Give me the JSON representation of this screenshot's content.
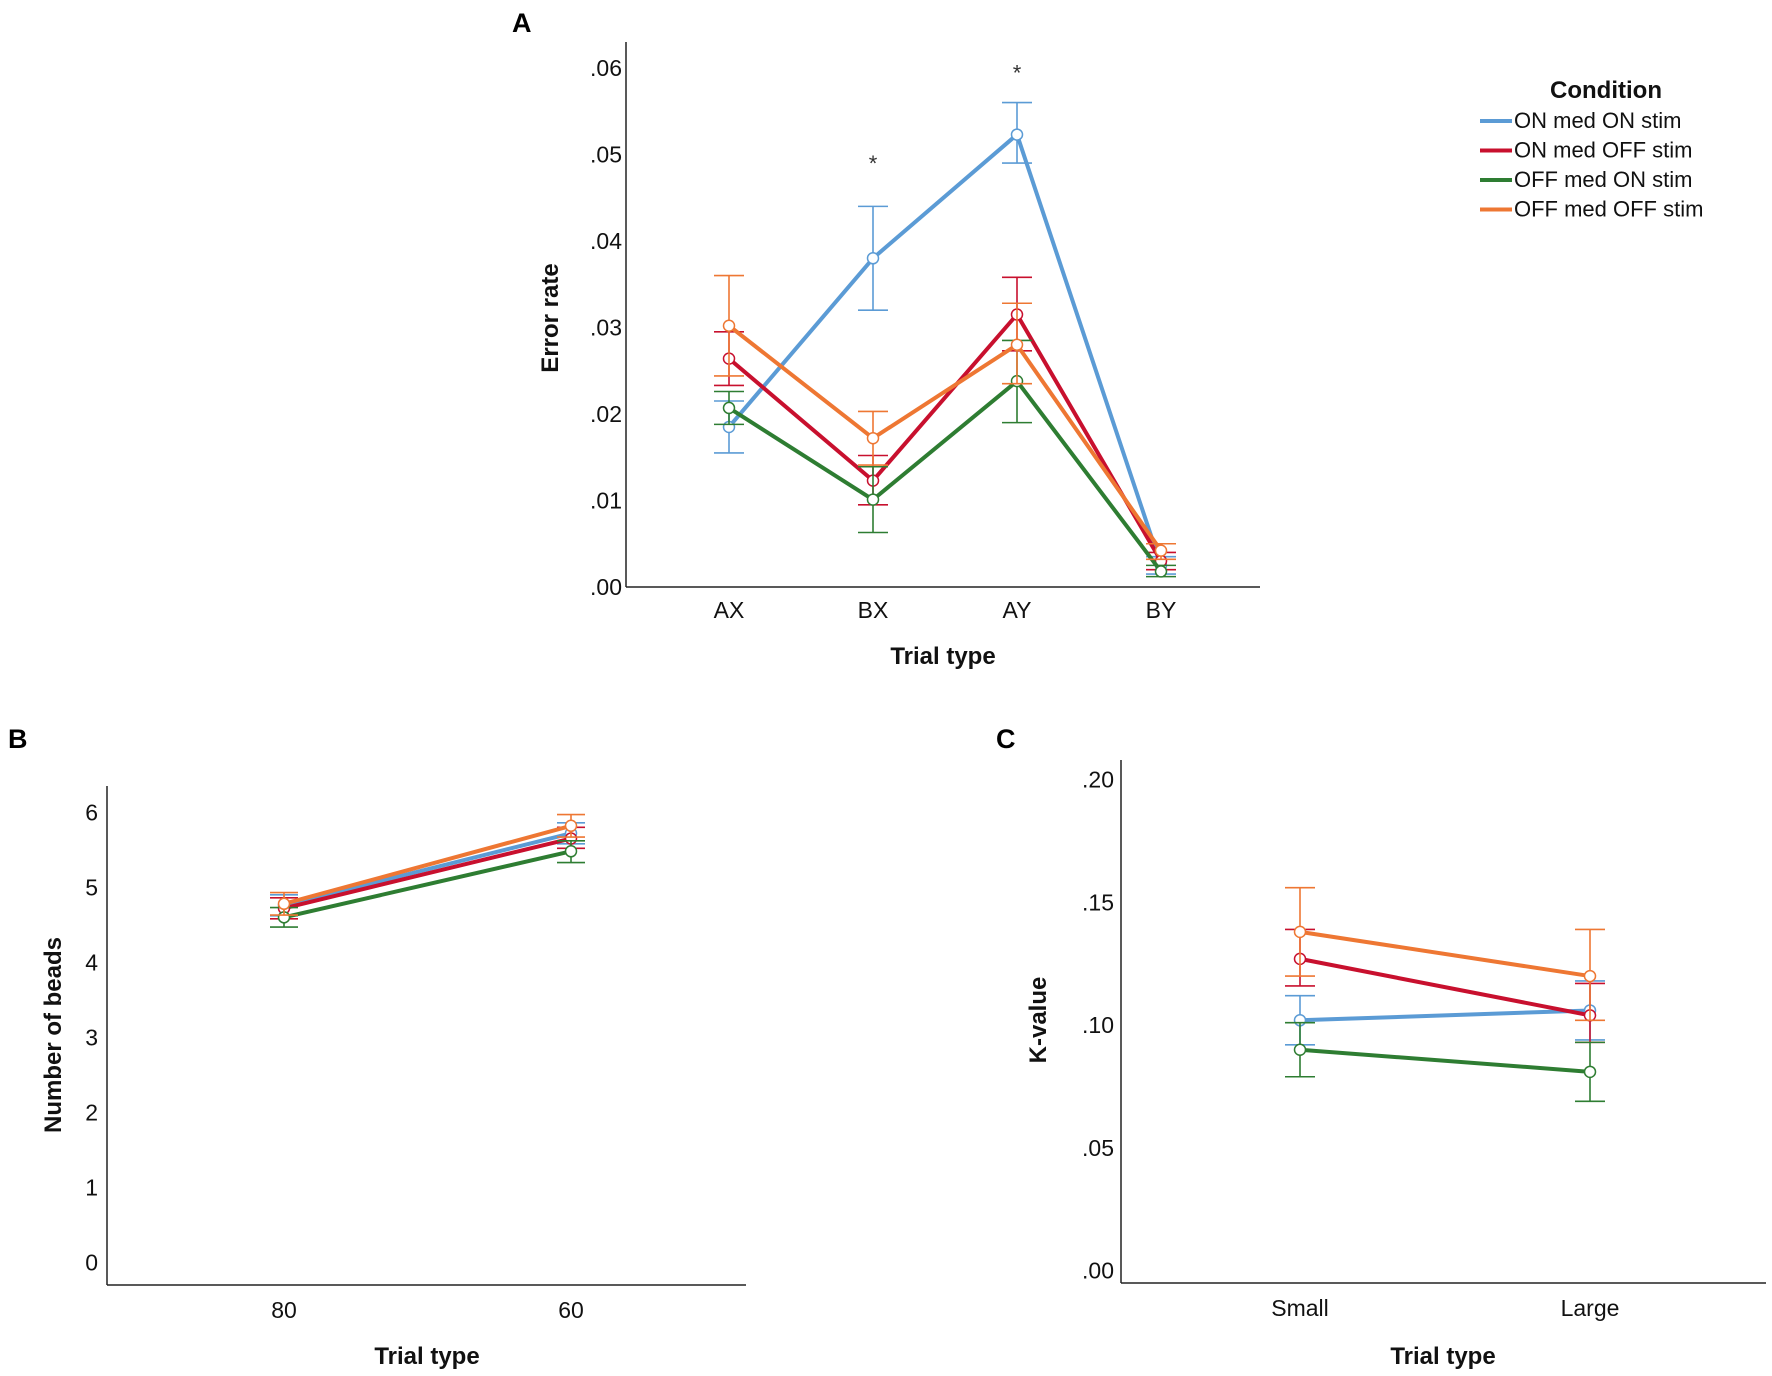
{
  "chart_data": [
    {
      "panel": "A",
      "type": "line",
      "xlabel": "Trial type",
      "ylabel": "Error rate",
      "categories": [
        "AX",
        "BX",
        "AY",
        "BY"
      ],
      "ylim": [
        0,
        0.063
      ],
      "yticks": [
        0,
        0.01,
        0.02,
        0.03,
        0.04,
        0.05,
        0.06
      ],
      "ytick_labels": [
        ".00",
        ".01",
        ".02",
        ".03",
        ".04",
        ".05",
        ".06"
      ],
      "annotations": [
        {
          "category": "BX",
          "text": "*",
          "y": 0.049
        },
        {
          "category": "AY",
          "text": "*",
          "y": 0.0595
        }
      ],
      "series": [
        {
          "name": "ON med ON stim",
          "color": "#5b9bd5",
          "values": [
            0.0185,
            0.038,
            0.0523,
            0.0025
          ],
          "err_low": [
            0.0155,
            0.032,
            0.049,
            0.0015
          ],
          "err_high": [
            0.0215,
            0.044,
            0.056,
            0.0035
          ]
        },
        {
          "name": "ON med OFF stim",
          "color": "#c8102e",
          "values": [
            0.0264,
            0.0123,
            0.0315,
            0.003
          ],
          "err_low": [
            0.0233,
            0.0095,
            0.0273,
            0.002
          ],
          "err_high": [
            0.0295,
            0.0152,
            0.0358,
            0.004
          ]
        },
        {
          "name": "OFF med ON stim",
          "color": "#2e7d32",
          "values": [
            0.0207,
            0.0101,
            0.0238,
            0.0018
          ],
          "err_low": [
            0.0188,
            0.0063,
            0.019,
            0.0012
          ],
          "err_high": [
            0.0226,
            0.0139,
            0.0285,
            0.0025
          ]
        },
        {
          "name": "OFF med OFF stim",
          "color": "#ee7733",
          "values": [
            0.0302,
            0.0172,
            0.028,
            0.0042
          ],
          "err_low": [
            0.0244,
            0.0141,
            0.0235,
            0.0032
          ],
          "err_high": [
            0.036,
            0.0203,
            0.0328,
            0.005
          ]
        }
      ]
    },
    {
      "panel": "B",
      "type": "line",
      "xlabel": "Trial type",
      "ylabel": "Number of beads",
      "categories": [
        "80",
        "60"
      ],
      "ylim": [
        -0.3,
        6.35
      ],
      "yticks": [
        0,
        1,
        2,
        3,
        4,
        5,
        6
      ],
      "ytick_labels": [
        "0",
        "1",
        "2",
        "3",
        "4",
        "5",
        "6"
      ],
      "series": [
        {
          "name": "ON med ON stim",
          "color": "#5b9bd5",
          "values": [
            4.76,
            5.72
          ],
          "err_low": [
            4.62,
            5.58
          ],
          "err_high": [
            4.9,
            5.86
          ]
        },
        {
          "name": "ON med OFF stim",
          "color": "#c8102e",
          "values": [
            4.72,
            5.65
          ],
          "err_low": [
            4.58,
            5.52
          ],
          "err_high": [
            4.86,
            5.8
          ]
        },
        {
          "name": "OFF med ON stim",
          "color": "#2e7d32",
          "values": [
            4.6,
            5.48
          ],
          "err_low": [
            4.47,
            5.33
          ],
          "err_high": [
            4.73,
            5.62
          ]
        },
        {
          "name": "OFF med OFF stim",
          "color": "#ee7733",
          "values": [
            4.78,
            5.82
          ],
          "err_low": [
            4.63,
            5.67
          ],
          "err_high": [
            4.93,
            5.97
          ]
        }
      ]
    },
    {
      "panel": "C",
      "type": "line",
      "xlabel": "Trial type",
      "ylabel": "K-value",
      "categories": [
        "Small",
        "Large"
      ],
      "ylim": [
        -0.005,
        0.208
      ],
      "yticks": [
        0,
        0.05,
        0.1,
        0.15,
        0.2
      ],
      "ytick_labels": [
        ".00",
        ".05",
        ".10",
        ".15",
        ".20"
      ],
      "series": [
        {
          "name": "ON med ON stim",
          "color": "#5b9bd5",
          "values": [
            0.102,
            0.106
          ],
          "err_low": [
            0.092,
            0.094
          ],
          "err_high": [
            0.112,
            0.118
          ]
        },
        {
          "name": "ON med OFF stim",
          "color": "#c8102e",
          "values": [
            0.127,
            0.104
          ],
          "err_low": [
            0.116,
            0.093
          ],
          "err_high": [
            0.139,
            0.117
          ]
        },
        {
          "name": "OFF med ON stim",
          "color": "#2e7d32",
          "values": [
            0.09,
            0.081
          ],
          "err_low": [
            0.079,
            0.069
          ],
          "err_high": [
            0.101,
            0.093
          ]
        },
        {
          "name": "OFF med OFF stim",
          "color": "#ee7733",
          "values": [
            0.138,
            0.12
          ],
          "err_low": [
            0.12,
            0.102
          ],
          "err_high": [
            0.156,
            0.139
          ]
        }
      ]
    }
  ],
  "legend": {
    "title": "Condition",
    "items": [
      {
        "label": "ON med ON stim",
        "color": "#5b9bd5"
      },
      {
        "label": "ON med OFF stim",
        "color": "#c8102e"
      },
      {
        "label": "OFF med ON stim",
        "color": "#2e7d32"
      },
      {
        "label": "OFF med OFF stim",
        "color": "#ee7733"
      }
    ]
  }
}
